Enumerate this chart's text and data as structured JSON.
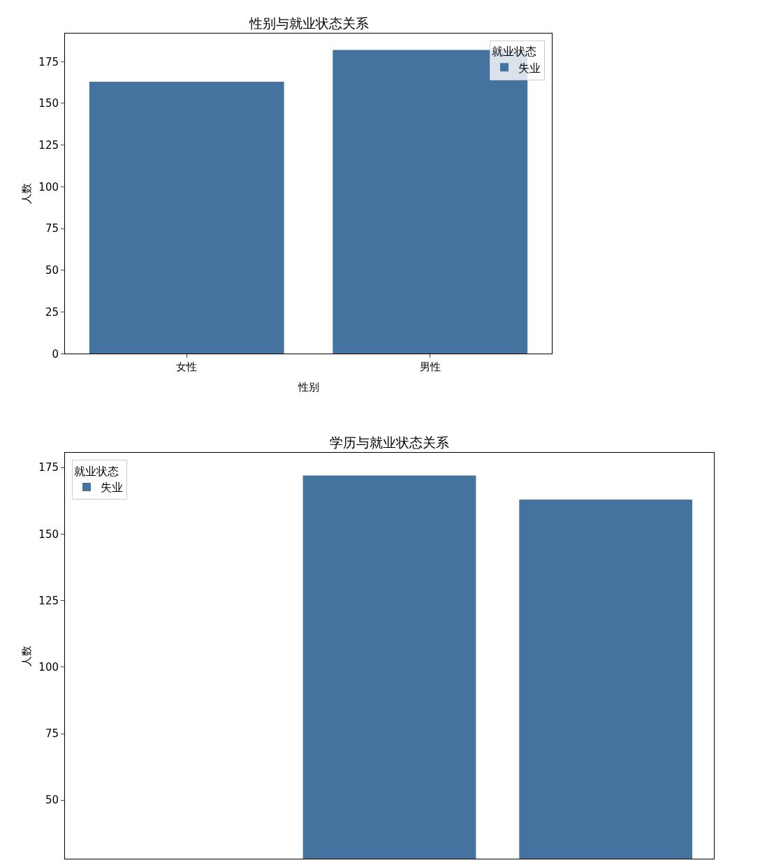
{
  "chart_data": [
    {
      "type": "bar",
      "title": "性别与就业状态关系",
      "xlabel": "性别",
      "ylabel": "人数",
      "legend_title": "就业状态",
      "categories": [
        "女性",
        "男性"
      ],
      "series": [
        {
          "name": "失业",
          "color": "#4573a0",
          "values": [
            163,
            182
          ]
        }
      ],
      "ylim": [
        0,
        192
      ],
      "yticks": [
        0,
        25,
        50,
        75,
        100,
        125,
        150,
        175
      ],
      "legend": "top right"
    },
    {
      "type": "bar",
      "title": "学历与就业状态关系",
      "ylabel": "人数",
      "legend_title": "就业状态",
      "categories": [
        null,
        null,
        null
      ],
      "series": [
        {
          "name": "失业",
          "color": "#4573a0",
          "values": [
            null,
            172,
            163
          ]
        }
      ],
      "ylim": [
        28,
        180.5
      ],
      "yticks": [
        50,
        75,
        100,
        125,
        150,
        175
      ],
      "legend": "top left"
    }
  ]
}
